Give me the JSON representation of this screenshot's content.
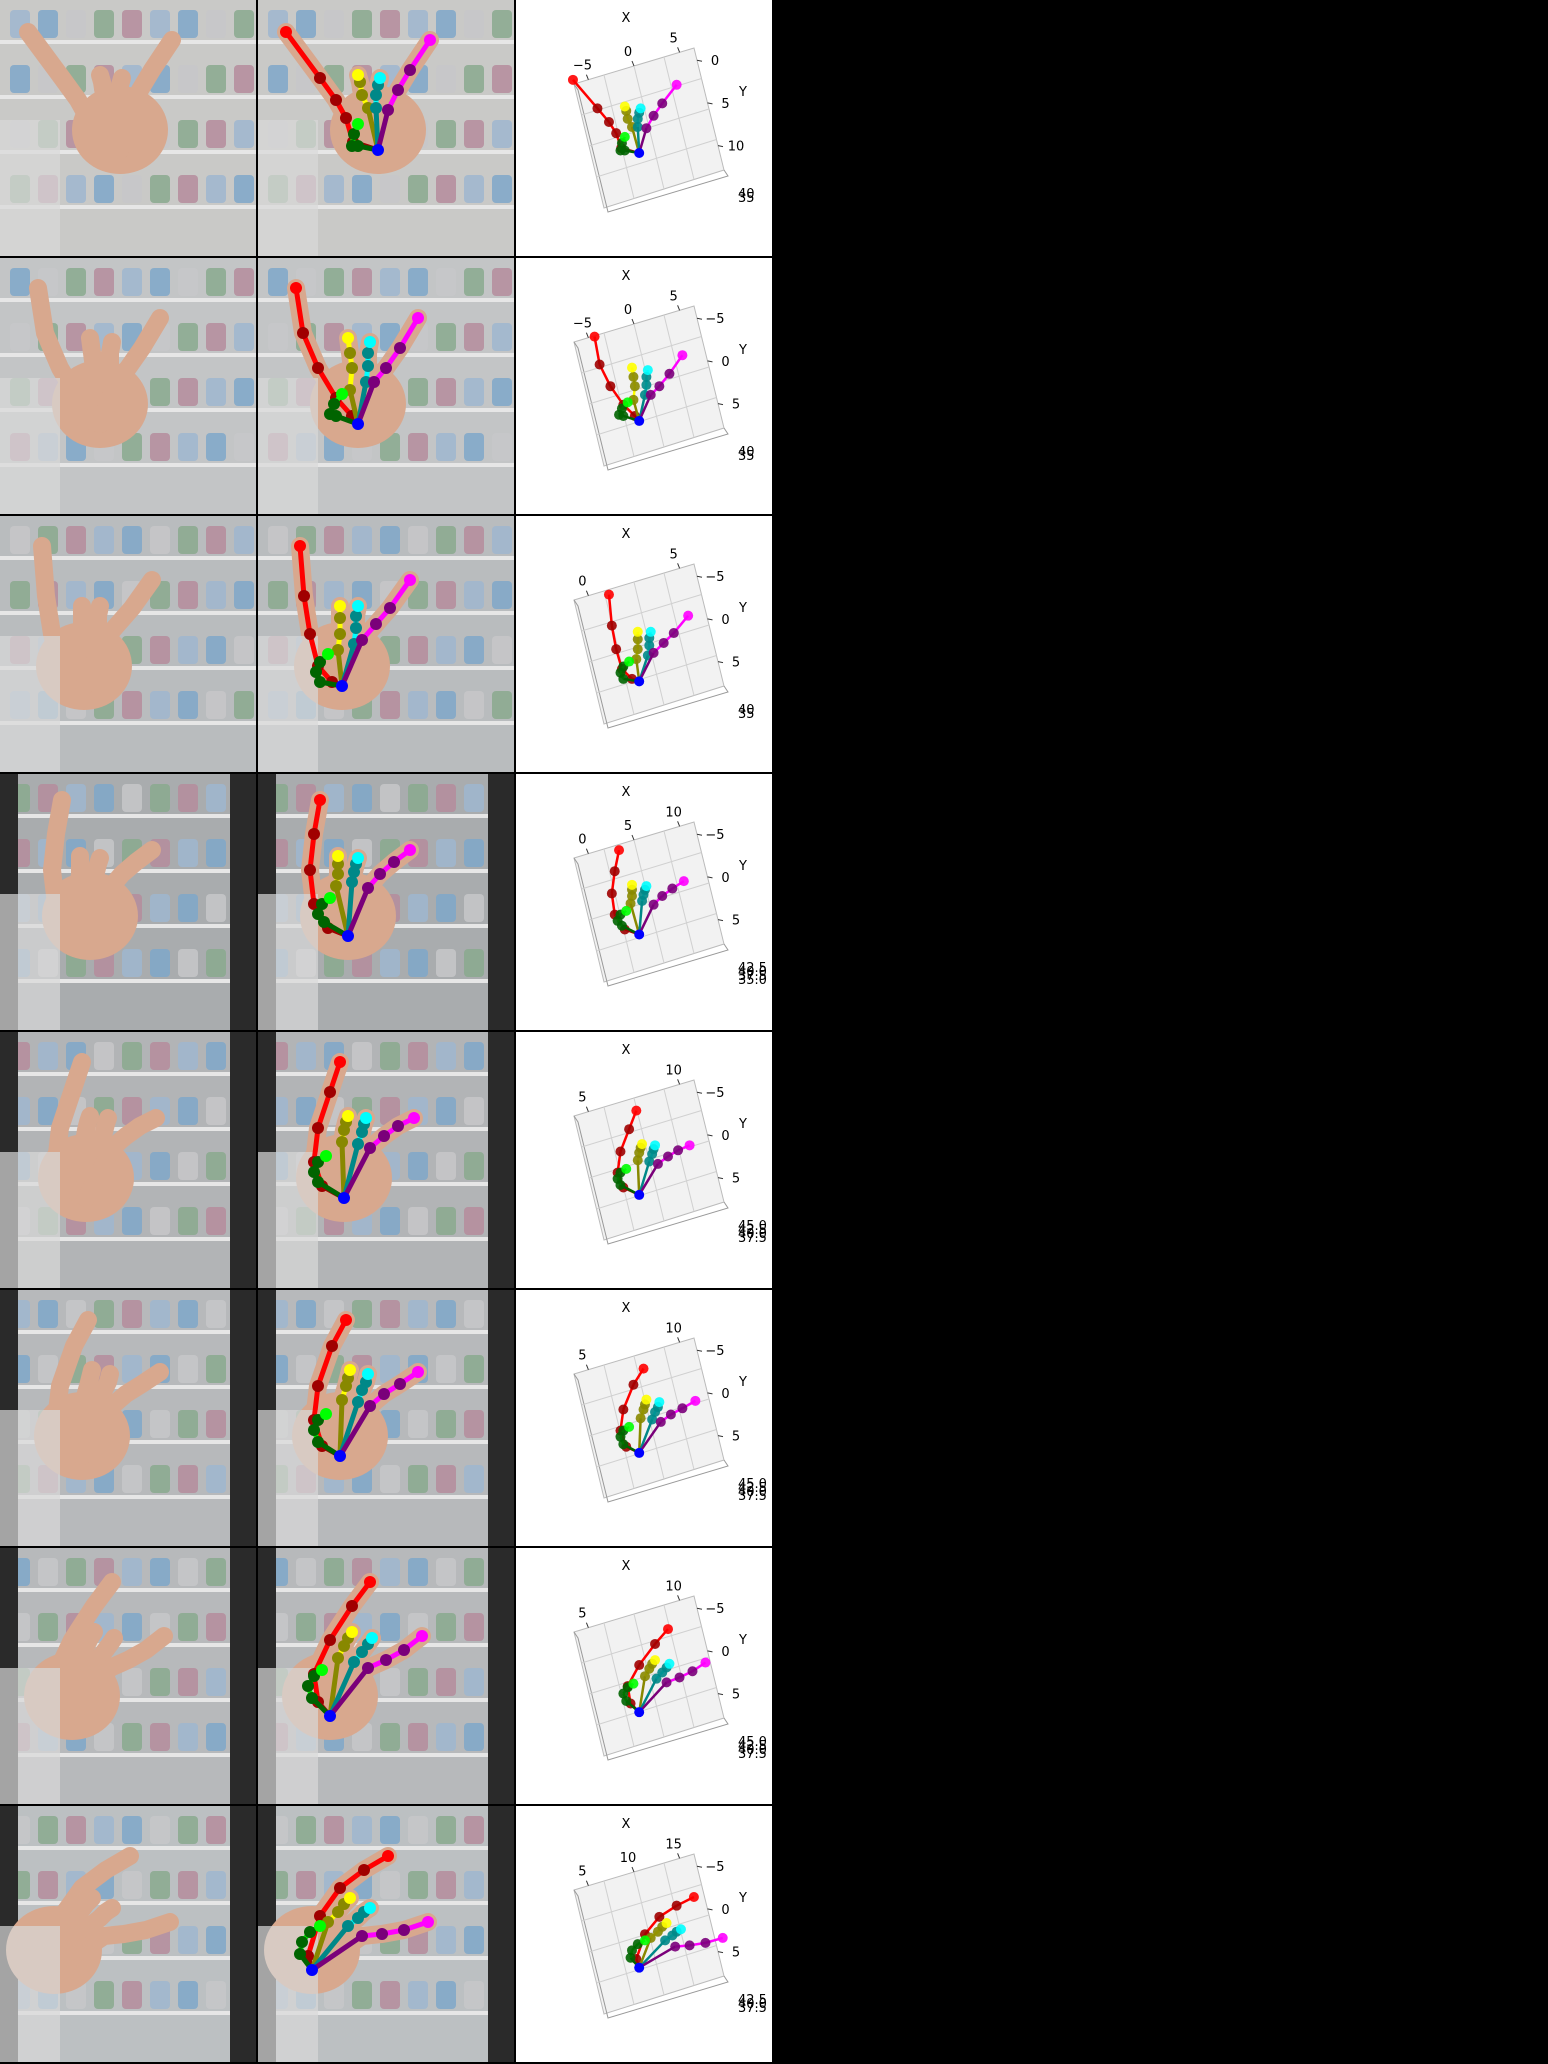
{
  "colors": {
    "background": "#000000",
    "plot_bg": "#ffffff",
    "pane": "#f2f2f2",
    "thumb": "#ff0000",
    "index": "#ffff00",
    "middle": "#00ffff",
    "ring": "#00ff00",
    "pinky": "#ff00ff",
    "wrist": "#0000ff"
  },
  "rows": [
    {
      "axis_title_x": "X",
      "axis_title_y": "Y",
      "x_ticks": [
        "−5",
        "0",
        "5"
      ],
      "y_ticks": [
        "0",
        "5",
        "10"
      ],
      "z_ticks": [
        "40",
        "35"
      ]
    },
    {
      "axis_title_x": "X",
      "axis_title_y": "Y",
      "x_ticks": [
        "−5",
        "0",
        "5"
      ],
      "y_ticks": [
        "−5",
        "0",
        "5"
      ],
      "z_ticks": [
        "40",
        "35"
      ]
    },
    {
      "axis_title_x": "X",
      "axis_title_y": "Y",
      "x_ticks": [
        "0",
        "5"
      ],
      "y_ticks": [
        "−5",
        "0",
        "5"
      ],
      "z_ticks": [
        "40",
        "35"
      ]
    },
    {
      "axis_title_x": "X",
      "axis_title_y": "Y",
      "x_ticks": [
        "0",
        "5",
        "10"
      ],
      "y_ticks": [
        "−5",
        "0",
        "5"
      ],
      "z_ticks": [
        "42.5",
        "40.0",
        "37.5",
        "35.0"
      ]
    },
    {
      "axis_title_x": "X",
      "axis_title_y": "Y",
      "x_ticks": [
        "5",
        "10"
      ],
      "y_ticks": [
        "−5",
        "0",
        "5"
      ],
      "z_ticks": [
        "45.0",
        "42.5",
        "40.0",
        "37.5"
      ]
    },
    {
      "axis_title_x": "X",
      "axis_title_y": "Y",
      "x_ticks": [
        "5",
        "10"
      ],
      "y_ticks": [
        "−5",
        "0",
        "5"
      ],
      "z_ticks": [
        "45.0",
        "42.5",
        "40.0",
        "37.5"
      ]
    },
    {
      "axis_title_x": "X",
      "axis_title_y": "Y",
      "x_ticks": [
        "5",
        "10"
      ],
      "y_ticks": [
        "−5",
        "0",
        "5"
      ],
      "z_ticks": [
        "45.0",
        "42.5",
        "40.0",
        "37.5"
      ]
    },
    {
      "axis_title_x": "X",
      "axis_title_y": "Y",
      "x_ticks": [
        "5",
        "10",
        "15"
      ],
      "y_ticks": [
        "−5",
        "0",
        "5"
      ],
      "z_ticks": [
        "42.5",
        "40.0",
        "37.5"
      ]
    }
  ]
}
